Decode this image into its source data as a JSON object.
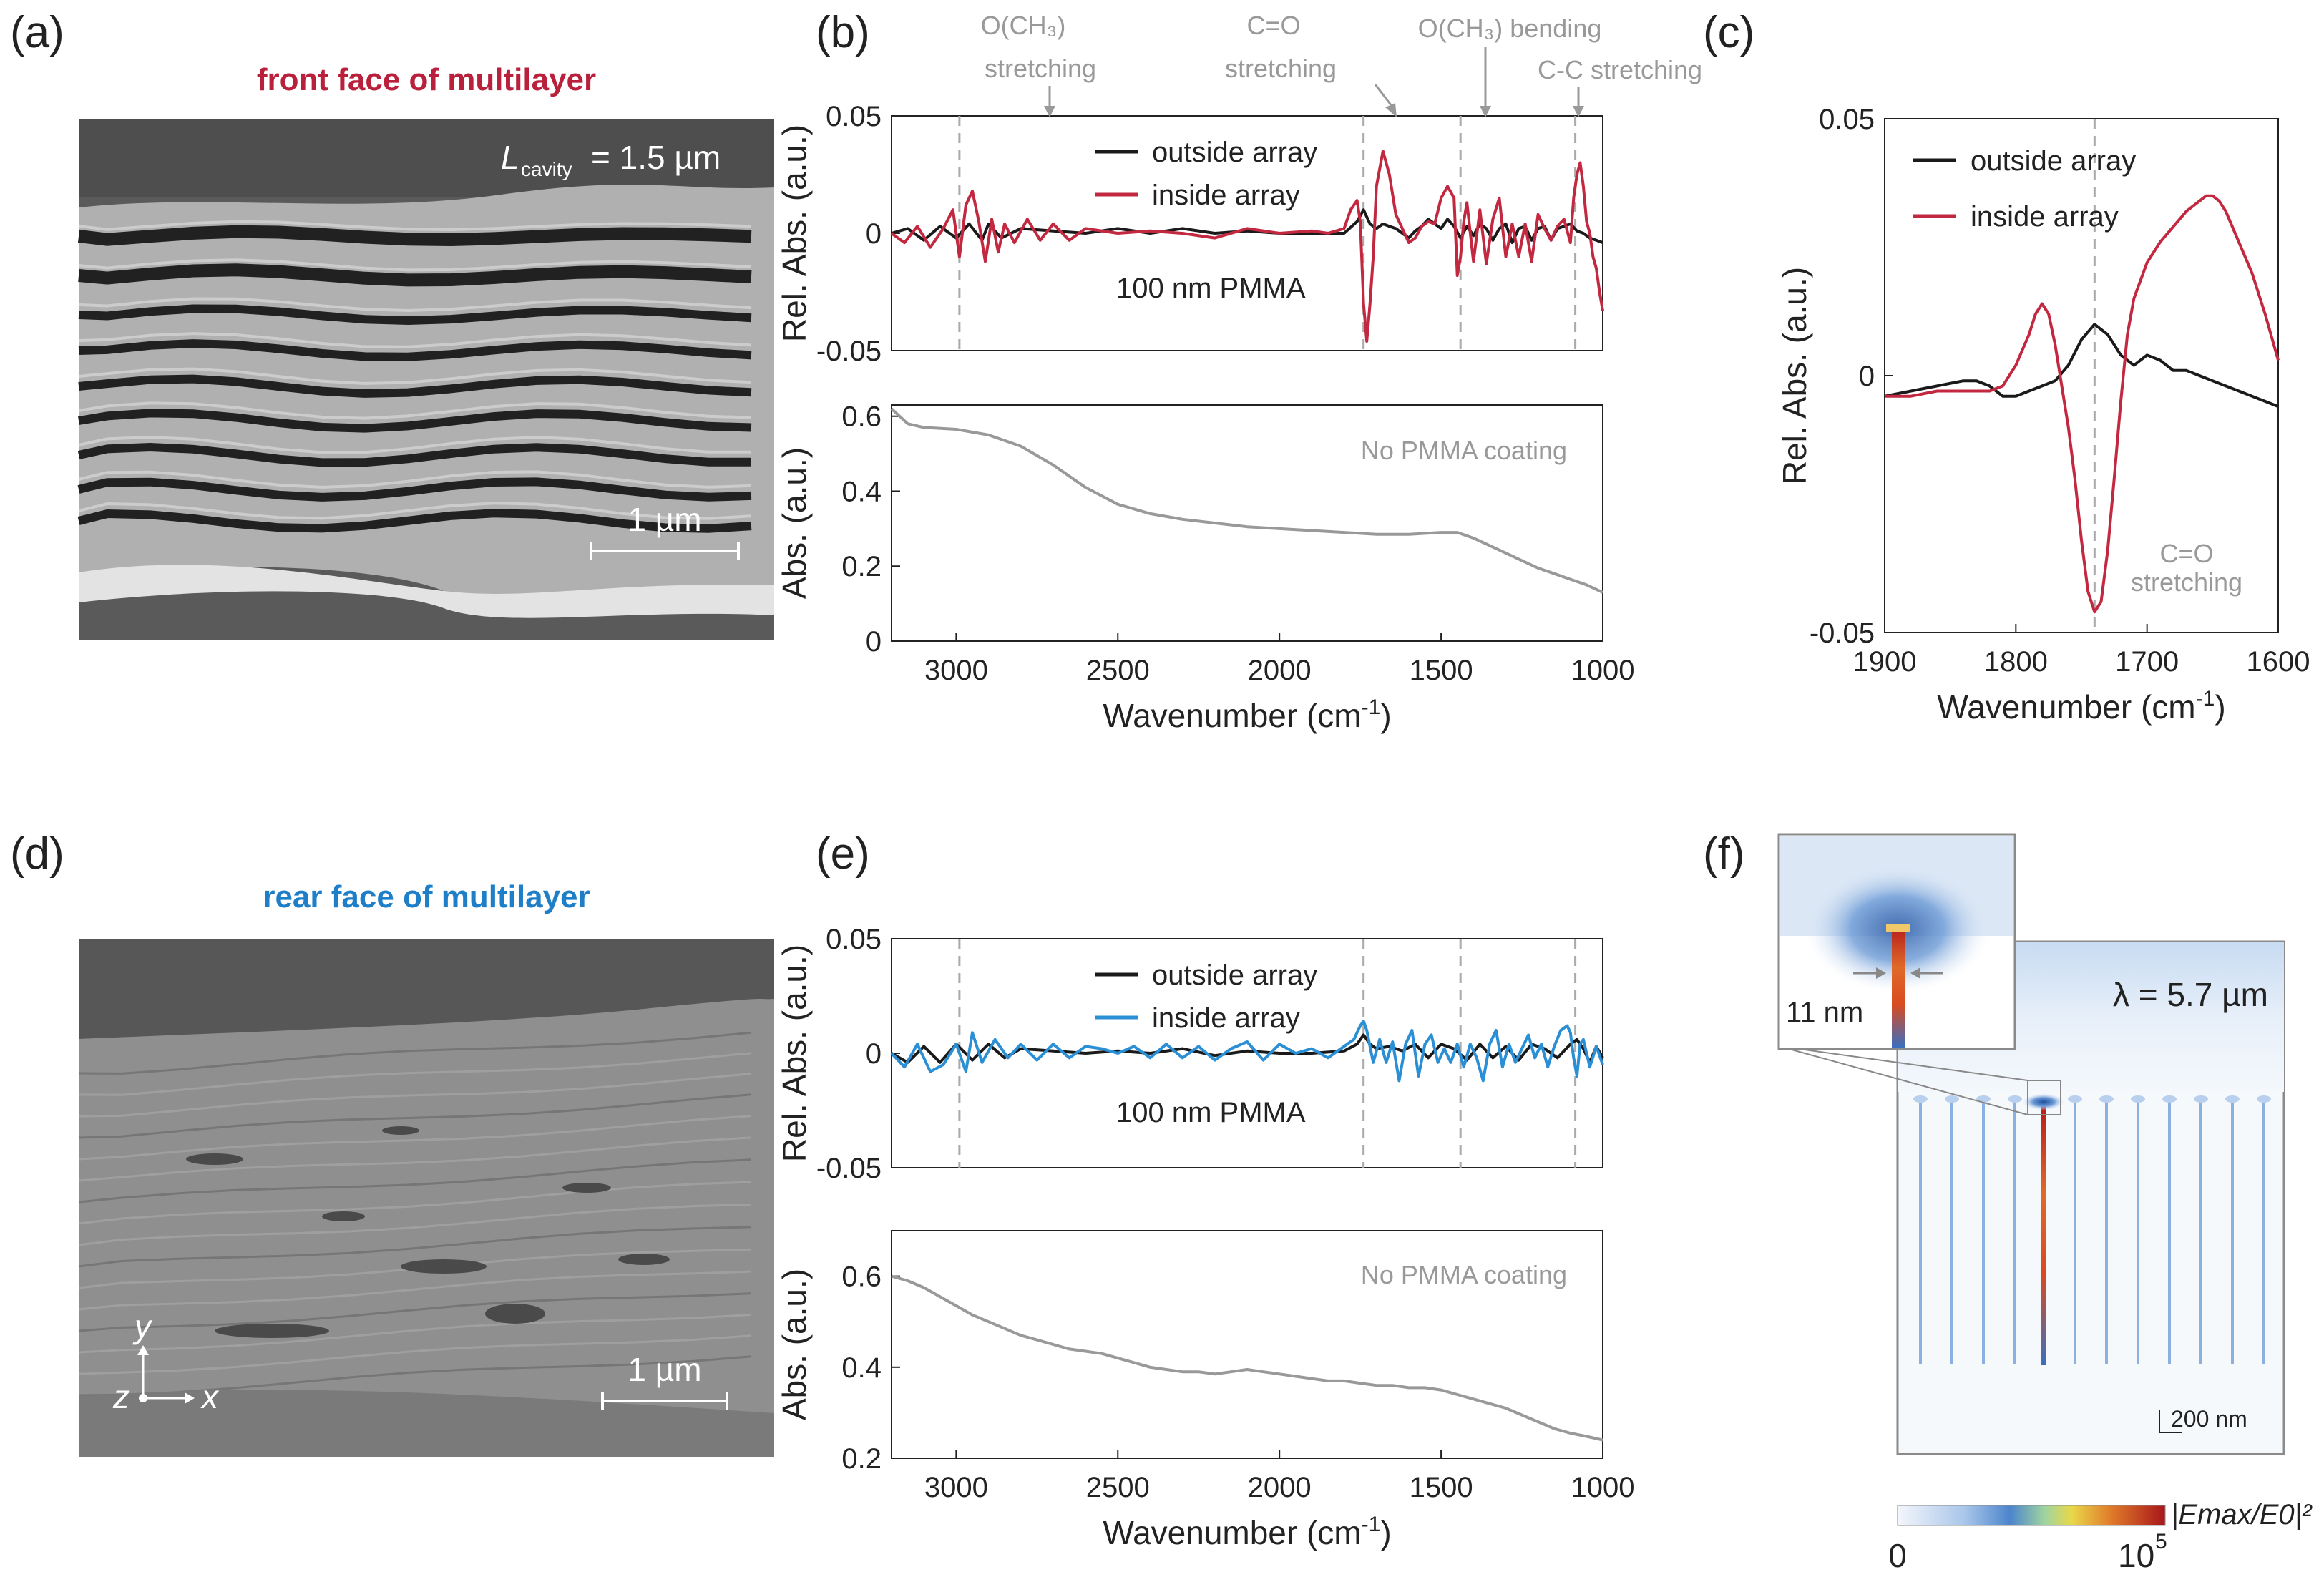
{
  "panels": {
    "a": {
      "label": "(a)",
      "title": "front face of multilayer",
      "title_color": "#b8203c",
      "cavity_sym": "L",
      "cavity_sub": "cavity",
      "cavity_val": "= 1.5 µm",
      "scalebar": "1 µm"
    },
    "b": {
      "label": "(b)"
    },
    "c": {
      "label": "(c)"
    },
    "d": {
      "label": "(d)",
      "title": "rear face of multilayer",
      "title_color": "#1e7fc8",
      "scalebar": "1 µm",
      "axis_y": "y",
      "axis_z": "z",
      "axis_x": "x"
    },
    "e": {
      "label": "(e)"
    },
    "f": {
      "label": "(f)",
      "wavelength": "λ = 5.7 µm",
      "gap": "11 nm",
      "scalebar": "200 nm",
      "colorbar_min": "0",
      "colorbar_max": "10",
      "colorbar_max_exp": "5",
      "colorbar_label": "|Emax/E0|²"
    }
  },
  "annotations": {
    "b": [
      {
        "line1": "O(CH₃)",
        "line2": "stretching"
      },
      {
        "line1": "C=O",
        "line2": "stretching"
      },
      {
        "line1": "O(CH₃) bending",
        "line2": ""
      },
      {
        "line1": "C-C stretching",
        "line2": ""
      }
    ],
    "c": {
      "line1": "C=O",
      "line2": "stretching"
    },
    "pmma": "100 nm PMMA",
    "no_pmma": "No PMMA coating"
  },
  "colors": {
    "outside": "#1a1a1a",
    "inside_b": "#c2283f",
    "inside_e": "#2b8fd6",
    "abs": "#999999",
    "dashed": "#aaaaaa"
  },
  "chart_data": [
    {
      "id": "b-top",
      "type": "line",
      "ylabel": "Rel. Abs. (a.u.)",
      "ylim": [
        -0.05,
        0.05
      ],
      "yticks": [
        "0.05",
        "0",
        "-0.05"
      ],
      "xlim": [
        3200,
        1000
      ],
      "dashed_x": [
        2990,
        1740,
        1440,
        1085
      ],
      "series": [
        {
          "name": "outside array",
          "color": "#1a1a1a",
          "x": [
            3200,
            3150,
            3100,
            3050,
            3000,
            2960,
            2920,
            2900,
            2860,
            2800,
            2700,
            2600,
            2500,
            2400,
            2300,
            2200,
            2100,
            2000,
            1900,
            1800,
            1760,
            1740,
            1720,
            1700,
            1680,
            1660,
            1640,
            1620,
            1600,
            1580,
            1560,
            1540,
            1520,
            1500,
            1480,
            1460,
            1440,
            1420,
            1400,
            1380,
            1360,
            1340,
            1320,
            1300,
            1280,
            1260,
            1240,
            1220,
            1200,
            1180,
            1160,
            1140,
            1120,
            1100,
            1080,
            1060,
            1040,
            1020,
            1000
          ],
          "y": [
            0,
            0.002,
            -0.003,
            0.003,
            -0.002,
            0.004,
            -0.003,
            0.004,
            -0.002,
            0.002,
            0.001,
            0,
            0.002,
            0,
            0.002,
            0,
            0.001,
            0,
            0,
            0,
            0.005,
            0.01,
            0.004,
            0.002,
            0.004,
            0.003,
            0.002,
            0,
            -0.002,
            0.001,
            0.003,
            0.006,
            0.004,
            0.002,
            0.006,
            0.003,
            -0.002,
            0.003,
            -0.001,
            0.004,
            0.002,
            -0.003,
            0.002,
            0.004,
            -0.004,
            0.002,
            0.003,
            -0.003,
            0.002,
            0.003,
            -0.003,
            0.002,
            0.003,
            0.004,
            0.001,
            0,
            -0.002,
            -0.003,
            -0.004
          ]
        },
        {
          "name": "inside array",
          "color": "#c2283f",
          "x": [
            3200,
            3160,
            3120,
            3080,
            3040,
            3010,
            2990,
            2970,
            2950,
            2930,
            2910,
            2890,
            2870,
            2850,
            2820,
            2780,
            2740,
            2700,
            2650,
            2600,
            2500,
            2400,
            2300,
            2200,
            2100,
            2000,
            1900,
            1850,
            1800,
            1780,
            1760,
            1750,
            1740,
            1730,
            1720,
            1710,
            1700,
            1680,
            1660,
            1640,
            1620,
            1600,
            1580,
            1560,
            1540,
            1520,
            1500,
            1480,
            1460,
            1450,
            1440,
            1430,
            1420,
            1400,
            1380,
            1360,
            1340,
            1320,
            1300,
            1280,
            1260,
            1240,
            1220,
            1200,
            1180,
            1160,
            1140,
            1120,
            1100,
            1090,
            1080,
            1070,
            1060,
            1050,
            1040,
            1030,
            1020,
            1010,
            1000
          ],
          "y": [
            0,
            -0.004,
            0.003,
            -0.006,
            0.002,
            0.01,
            -0.01,
            0.012,
            0.018,
            0.005,
            -0.012,
            0.006,
            -0.008,
            0.004,
            -0.004,
            0.006,
            -0.003,
            0.004,
            -0.003,
            0.002,
            0,
            0.001,
            0,
            -0.002,
            0.002,
            0,
            0.001,
            0,
            0.002,
            0.01,
            0.014,
            0.005,
            -0.03,
            -0.046,
            -0.03,
            -0.01,
            0.02,
            0.035,
            0.025,
            0.008,
            0.002,
            -0.004,
            -0.002,
            0.003,
            0.005,
            0.004,
            0.015,
            0.02,
            0.015,
            -0.018,
            -0.01,
            0.005,
            0.013,
            -0.012,
            0.01,
            -0.013,
            0.006,
            0.015,
            -0.01,
            0.004,
            -0.01,
            0.004,
            -0.012,
            0.008,
            0.002,
            -0.003,
            0.003,
            0.006,
            -0.004,
            0.015,
            0.025,
            0.03,
            0.02,
            0.005,
            0,
            -0.01,
            -0.015,
            -0.025,
            -0.033
          ]
        }
      ]
    },
    {
      "id": "b-bottom",
      "type": "line",
      "ylabel": "Abs. (a.u.)",
      "ylim": [
        0,
        0.63
      ],
      "yticks": [
        "0.6",
        "0.4",
        "0.2",
        "0"
      ],
      "xlim": [
        3200,
        1000
      ],
      "xticks": [
        3000,
        2500,
        2000,
        1500,
        1000
      ],
      "xlabel": "Wavenumber (cm⁻¹)",
      "xlabel_base": "Wavenumber (cm",
      "xlabel_exp": "-1",
      "xlabel_tail": ")",
      "series": [
        {
          "name": "No PMMA coating",
          "color": "#999999",
          "x": [
            3200,
            3150,
            3100,
            3000,
            2900,
            2800,
            2700,
            2600,
            2500,
            2400,
            2300,
            2200,
            2100,
            2000,
            1900,
            1800,
            1700,
            1600,
            1500,
            1450,
            1400,
            1350,
            1300,
            1250,
            1200,
            1150,
            1100,
            1050,
            1000
          ],
          "y": [
            0.62,
            0.58,
            0.57,
            0.565,
            0.55,
            0.52,
            0.47,
            0.41,
            0.365,
            0.34,
            0.325,
            0.315,
            0.305,
            0.3,
            0.295,
            0.29,
            0.285,
            0.285,
            0.29,
            0.29,
            0.275,
            0.255,
            0.235,
            0.215,
            0.195,
            0.18,
            0.165,
            0.15,
            0.13
          ]
        }
      ]
    },
    {
      "id": "c",
      "type": "line",
      "ylabel": "Rel. Abs. (a.u.)",
      "ylim": [
        -0.05,
        0.05
      ],
      "yticks": [
        "0.05",
        "0",
        "-0.05"
      ],
      "xlim": [
        1900,
        1600
      ],
      "xticks": [
        1900,
        1800,
        1700,
        1600
      ],
      "xlabel": "Wavenumber (cm⁻¹)",
      "xlabel_base": "Wavenumber (cm",
      "xlabel_exp": "-1",
      "xlabel_tail": ")",
      "dashed_x": [
        1740
      ],
      "series": [
        {
          "name": "outside array",
          "color": "#1a1a1a",
          "x": [
            1900,
            1880,
            1860,
            1840,
            1830,
            1820,
            1810,
            1800,
            1790,
            1780,
            1770,
            1760,
            1750,
            1740,
            1730,
            1720,
            1710,
            1700,
            1690,
            1680,
            1670,
            1660,
            1650,
            1640,
            1630,
            1620,
            1610,
            1600
          ],
          "y": [
            -0.004,
            -0.003,
            -0.002,
            -0.001,
            -0.001,
            -0.002,
            -0.004,
            -0.004,
            -0.003,
            -0.002,
            -0.001,
            0.002,
            0.007,
            0.01,
            0.008,
            0.004,
            0.002,
            0.004,
            0.003,
            0.001,
            0.001,
            0,
            -0.001,
            -0.002,
            -0.003,
            -0.004,
            -0.005,
            -0.006
          ]
        },
        {
          "name": "inside array",
          "color": "#c2283f",
          "x": [
            1900,
            1880,
            1860,
            1840,
            1830,
            1820,
            1810,
            1800,
            1790,
            1785,
            1780,
            1775,
            1770,
            1765,
            1760,
            1755,
            1750,
            1745,
            1740,
            1735,
            1730,
            1725,
            1720,
            1715,
            1710,
            1700,
            1690,
            1680,
            1670,
            1660,
            1655,
            1650,
            1645,
            1640,
            1630,
            1620,
            1610,
            1600
          ],
          "y": [
            -0.004,
            -0.004,
            -0.003,
            -0.003,
            -0.003,
            -0.003,
            -0.002,
            0.002,
            0.008,
            0.012,
            0.014,
            0.012,
            0.006,
            -0.002,
            -0.01,
            -0.02,
            -0.032,
            -0.042,
            -0.046,
            -0.044,
            -0.034,
            -0.02,
            -0.005,
            0.008,
            0.015,
            0.022,
            0.026,
            0.029,
            0.032,
            0.034,
            0.035,
            0.035,
            0.034,
            0.032,
            0.026,
            0.02,
            0.012,
            0.003
          ]
        }
      ]
    },
    {
      "id": "e-top",
      "type": "line",
      "ylabel": "Rel. Abs. (a.u.)",
      "ylim": [
        -0.05,
        0.05
      ],
      "yticks": [
        "0.05",
        "0",
        "-0.05"
      ],
      "xlim": [
        3200,
        1000
      ],
      "dashed_x": [
        2990,
        1740,
        1440,
        1085
      ],
      "series": [
        {
          "name": "outside array",
          "color": "#1a1a1a",
          "x": [
            3200,
            3150,
            3100,
            3050,
            3000,
            2950,
            2900,
            2850,
            2800,
            2700,
            2600,
            2500,
            2400,
            2300,
            2200,
            2100,
            2000,
            1900,
            1800,
            1760,
            1740,
            1720,
            1700,
            1660,
            1620,
            1580,
            1540,
            1500,
            1460,
            1420,
            1380,
            1340,
            1300,
            1260,
            1220,
            1180,
            1140,
            1100,
            1080,
            1060,
            1040,
            1020,
            1000
          ],
          "y": [
            0,
            -0.004,
            0.003,
            -0.004,
            0.004,
            -0.003,
            0.004,
            -0.002,
            0.002,
            0.001,
            0,
            0.001,
            0,
            0.002,
            -0.001,
            0.001,
            0,
            0,
            0.001,
            0.004,
            0.008,
            0.004,
            0.002,
            0.003,
            0.001,
            0.004,
            -0.002,
            0.004,
            0.002,
            -0.003,
            0.004,
            -0.002,
            0.003,
            -0.003,
            0.004,
            0.002,
            -0.002,
            0.004,
            0.006,
            0.002,
            -0.004,
            0.003,
            -0.002
          ]
        },
        {
          "name": "inside array",
          "color": "#2b8fd6",
          "x": [
            3200,
            3160,
            3120,
            3080,
            3040,
            3000,
            2970,
            2950,
            2920,
            2880,
            2840,
            2800,
            2750,
            2700,
            2650,
            2600,
            2550,
            2500,
            2450,
            2400,
            2350,
            2300,
            2250,
            2200,
            2150,
            2100,
            2050,
            2000,
            1950,
            1900,
            1850,
            1800,
            1770,
            1750,
            1740,
            1730,
            1710,
            1690,
            1670,
            1650,
            1630,
            1610,
            1590,
            1570,
            1550,
            1530,
            1510,
            1490,
            1470,
            1450,
            1430,
            1410,
            1390,
            1370,
            1350,
            1330,
            1310,
            1290,
            1270,
            1250,
            1230,
            1210,
            1190,
            1170,
            1150,
            1130,
            1110,
            1100,
            1090,
            1080,
            1070,
            1060,
            1040,
            1020,
            1000
          ],
          "y": [
            0,
            -0.006,
            0.004,
            -0.008,
            -0.005,
            0.004,
            -0.008,
            0.009,
            -0.004,
            0.006,
            -0.002,
            0.004,
            -0.003,
            0.004,
            -0.002,
            0.003,
            0.002,
            0,
            0.003,
            -0.002,
            0.004,
            -0.002,
            0.003,
            -0.003,
            0.002,
            0.005,
            -0.003,
            0.004,
            0,
            0.002,
            -0.002,
            0.003,
            0.006,
            0.012,
            0.014,
            0.01,
            -0.004,
            0.006,
            -0.004,
            0.005,
            -0.012,
            0.004,
            0.01,
            -0.01,
            0.004,
            0.008,
            -0.004,
            0.002,
            -0.004,
            0.004,
            -0.006,
            0.004,
            -0.002,
            -0.012,
            0.004,
            0.01,
            -0.006,
            0.004,
            -0.004,
            0.002,
            0.008,
            -0.002,
            0.004,
            -0.006,
            0.003,
            0.01,
            0.012,
            0.009,
            -0.002,
            -0.01,
            0.004,
            0.006,
            -0.006,
            0.003,
            -0.005
          ]
        }
      ]
    },
    {
      "id": "e-bottom",
      "type": "line",
      "ylabel": "Abs. (a.u.)",
      "ylim": [
        0.2,
        0.7
      ],
      "yticks": [
        "0.6",
        "0.4",
        "0.2"
      ],
      "xlim": [
        3200,
        1000
      ],
      "xticks": [
        3000,
        2500,
        2000,
        1500,
        1000
      ],
      "xlabel": "Wavenumber (cm⁻¹)",
      "xlabel_base": "Wavenumber (cm",
      "xlabel_exp": "-1",
      "xlabel_tail": ")",
      "series": [
        {
          "name": "No PMMA coating",
          "color": "#999999",
          "x": [
            3200,
            3150,
            3100,
            3050,
            3000,
            2950,
            2900,
            2850,
            2800,
            2750,
            2700,
            2650,
            2600,
            2550,
            2500,
            2450,
            2400,
            2350,
            2300,
            2250,
            2200,
            2150,
            2100,
            2050,
            2000,
            1950,
            1900,
            1850,
            1800,
            1750,
            1700,
            1650,
            1600,
            1550,
            1500,
            1450,
            1400,
            1350,
            1300,
            1250,
            1200,
            1150,
            1100,
            1050,
            1000
          ],
          "y": [
            0.6,
            0.59,
            0.575,
            0.555,
            0.535,
            0.515,
            0.5,
            0.485,
            0.47,
            0.46,
            0.45,
            0.44,
            0.435,
            0.43,
            0.42,
            0.41,
            0.4,
            0.395,
            0.39,
            0.39,
            0.385,
            0.39,
            0.395,
            0.39,
            0.385,
            0.38,
            0.375,
            0.37,
            0.37,
            0.365,
            0.36,
            0.36,
            0.355,
            0.355,
            0.35,
            0.34,
            0.33,
            0.32,
            0.31,
            0.295,
            0.28,
            0.265,
            0.255,
            0.248,
            0.24
          ]
        }
      ]
    }
  ]
}
